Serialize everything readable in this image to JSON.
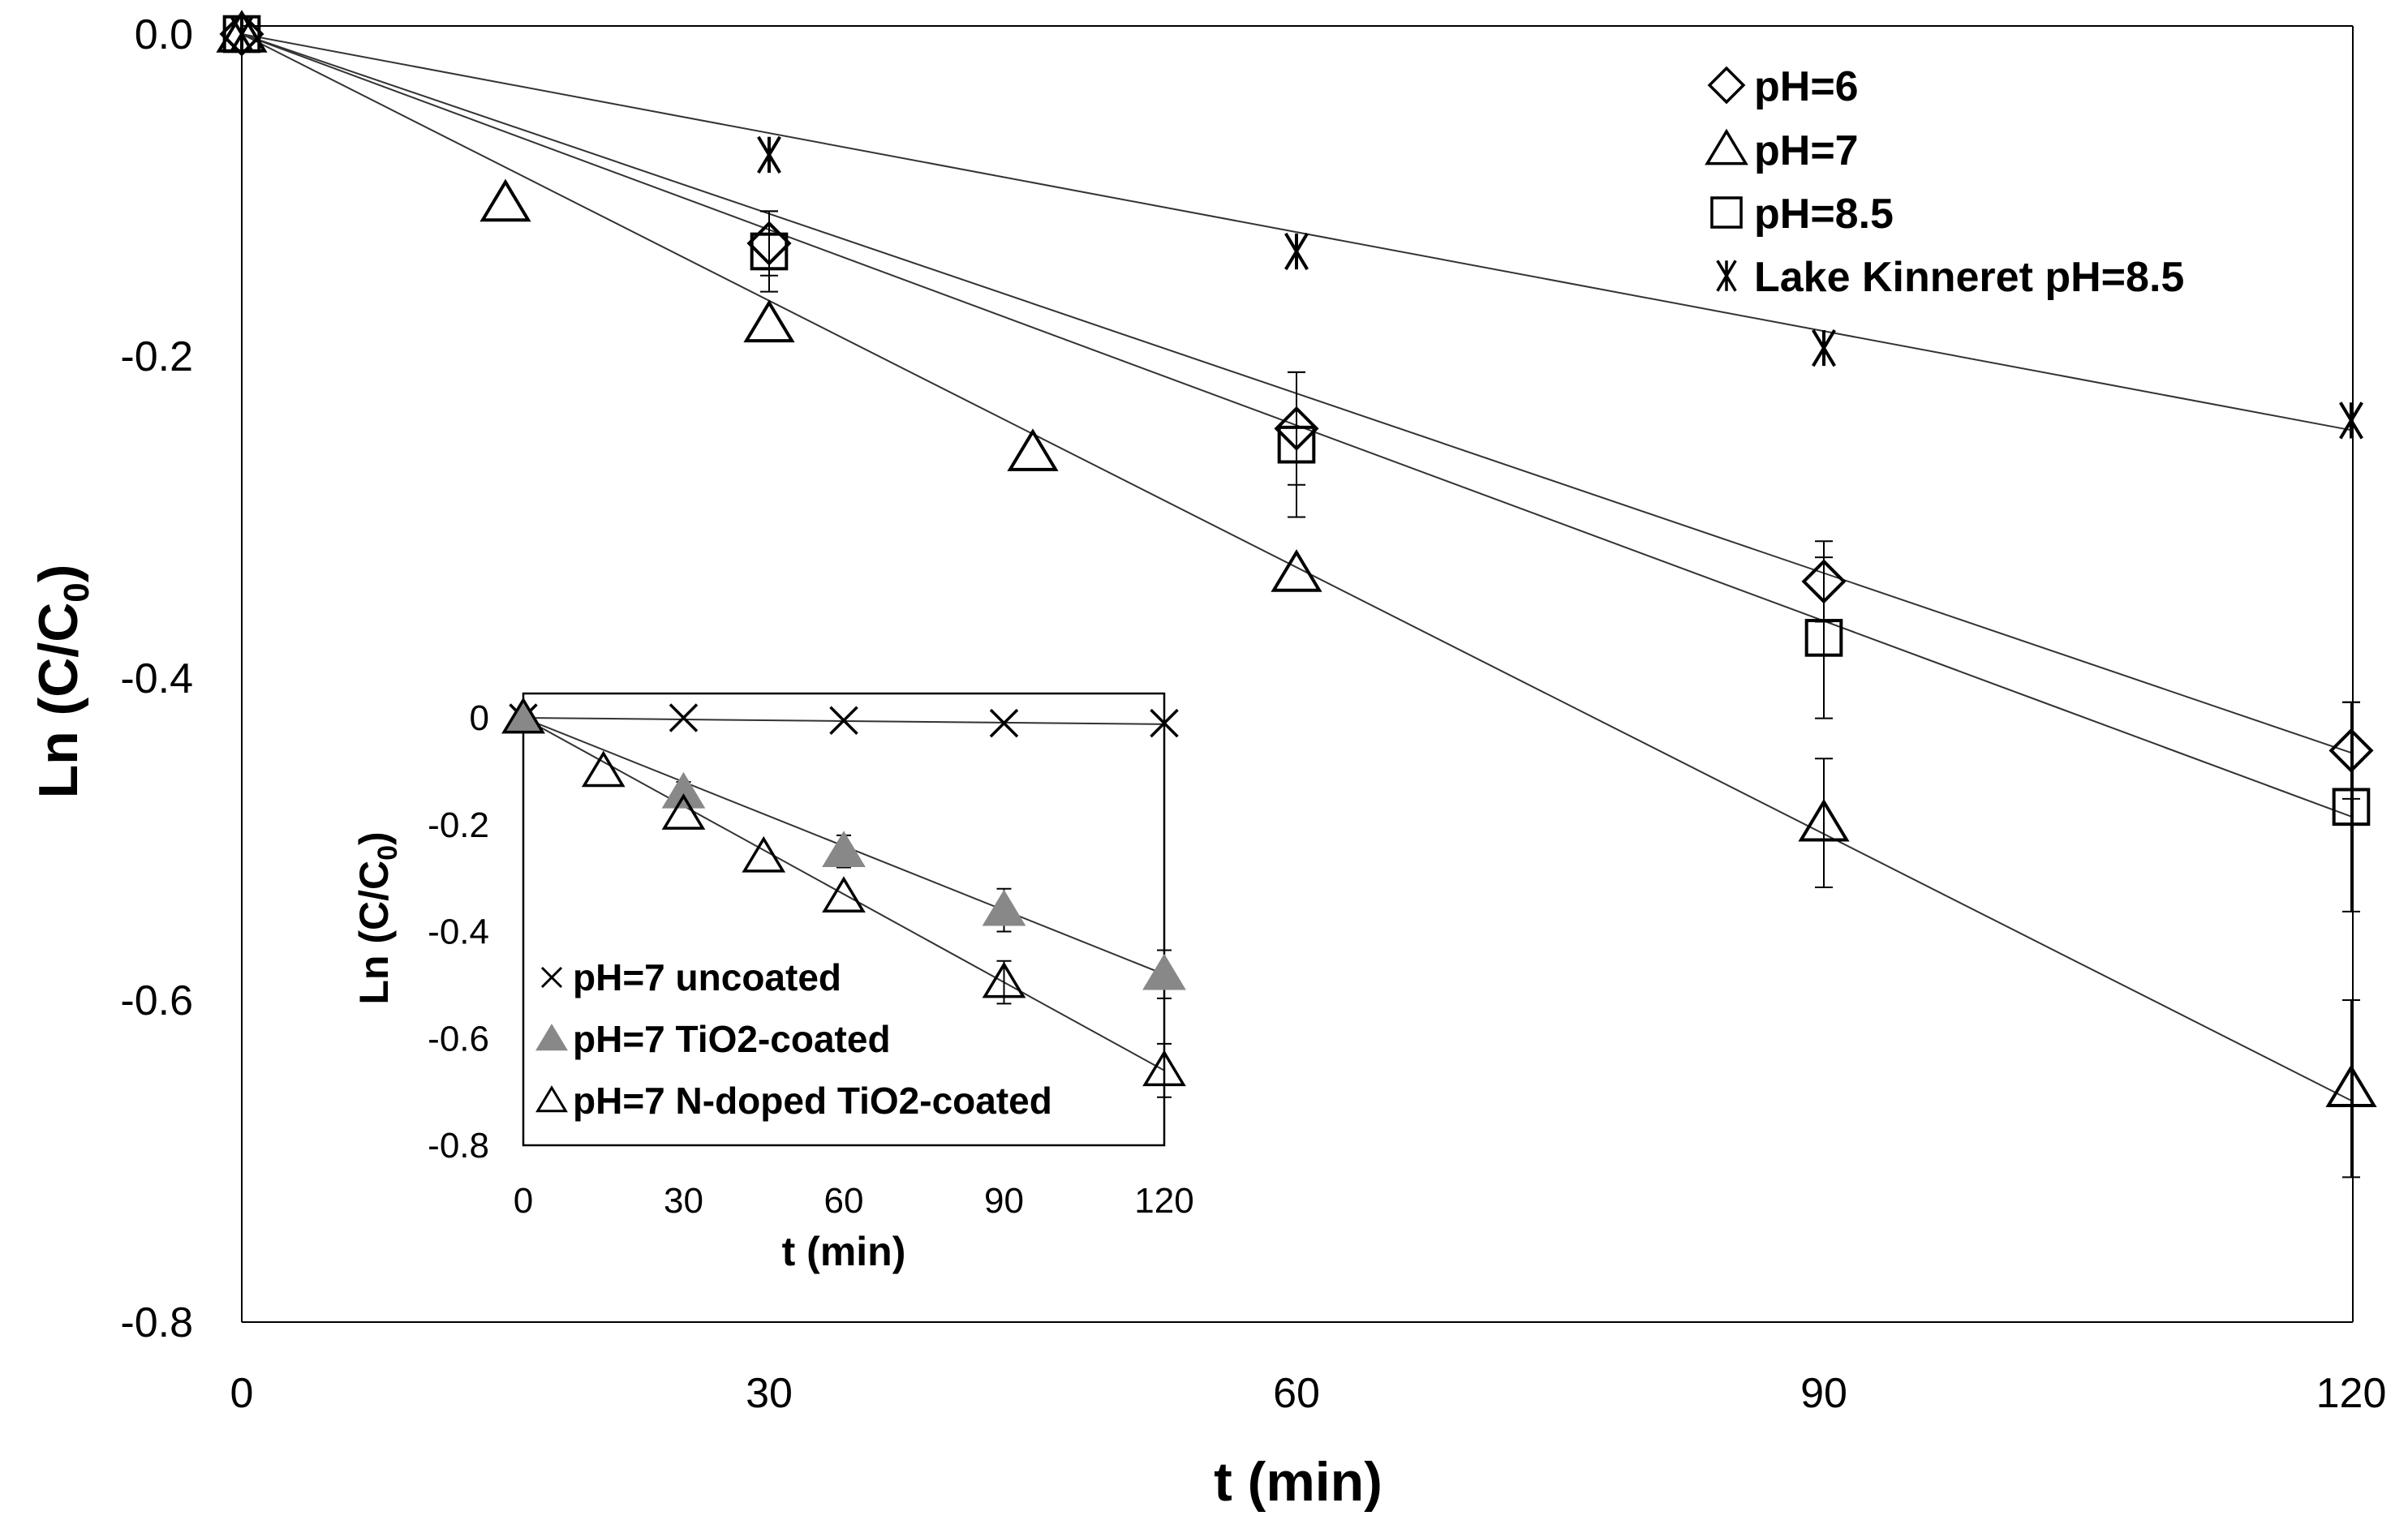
{
  "chart_data": [
    {
      "id": "main",
      "type": "scatter",
      "xlabel": "t (min)",
      "ylabel": "Ln (C/C",
      "ylabel_sub": "0",
      "ylabel_close": ")",
      "xlim": [
        0,
        120
      ],
      "ylim": [
        -0.8,
        0.0
      ],
      "xticks": [
        0,
        30,
        60,
        90,
        120
      ],
      "xtick_labels": [
        "0",
        "30",
        "60",
        "90",
        "120"
      ],
      "yticks": [
        0.0,
        -0.2,
        -0.4,
        -0.6,
        -0.8
      ],
      "ytick_labels": [
        "0.0",
        "-0.2",
        "-0.4",
        "-0.6",
        "-0.8"
      ],
      "grid": false,
      "legend_position": "top-right",
      "series": [
        {
          "name": "pH=6",
          "marker": "diamond",
          "x": [
            0,
            30,
            60,
            90,
            120
          ],
          "y": [
            0,
            -0.13,
            -0.245,
            -0.34,
            -0.445
          ],
          "err": [
            0,
            0.02,
            0.035,
            0.025,
            0.03
          ],
          "fit_slope": -0.00372
        },
        {
          "name": "pH=7",
          "marker": "triangle",
          "x": [
            0,
            15,
            30,
            45,
            60,
            90,
            120
          ],
          "y": [
            0,
            -0.105,
            -0.18,
            -0.26,
            -0.335,
            -0.49,
            -0.655
          ],
          "err": [
            0,
            0,
            0,
            0,
            0,
            0.04,
            0.055
          ],
          "fit_slope": -0.00552
        },
        {
          "name": "pH=8.5",
          "marker": "square",
          "x": [
            0,
            30,
            60,
            90,
            120
          ],
          "y": [
            0,
            -0.135,
            -0.255,
            -0.375,
            -0.48
          ],
          "err": [
            0,
            0.025,
            0.045,
            0.05,
            0.065
          ],
          "fit_slope": -0.00405
        },
        {
          "name": "Lake Kinneret pH=8.5",
          "marker": "asterisk",
          "x": [
            0,
            30,
            60,
            90,
            120
          ],
          "y": [
            0,
            -0.075,
            -0.135,
            -0.195,
            -0.24
          ],
          "err": [
            0,
            0,
            0,
            0,
            0
          ],
          "fit_slope": -0.00205
        }
      ]
    },
    {
      "id": "inset",
      "type": "scatter",
      "xlabel": "t (min)",
      "ylabel": "Ln (C/C",
      "ylabel_sub": "0",
      "ylabel_close": ")",
      "xlim": [
        0,
        120
      ],
      "ylim": [
        -0.8,
        0.0
      ],
      "xticks": [
        0,
        30,
        60,
        90,
        120
      ],
      "xtick_labels": [
        "0",
        "30",
        "60",
        "90",
        "120"
      ],
      "yticks": [
        0.0,
        -0.2,
        -0.4,
        -0.6,
        -0.8
      ],
      "ytick_labels": [
        "0",
        "-0.2",
        "-0.4",
        "-0.6",
        "-0.8"
      ],
      "grid": false,
      "legend_position": "bottom-left",
      "series": [
        {
          "name": "pH=7 uncoated",
          "marker": "x",
          "x": [
            0,
            30,
            60,
            90,
            120
          ],
          "y": [
            0,
            0,
            -0.005,
            -0.01,
            -0.01
          ],
          "err": [
            0,
            0,
            0,
            0,
            0
          ],
          "fit_slope": -0.0001
        },
        {
          "name": "pH=7 TiO2-coated",
          "marker": "filled-triangle",
          "x": [
            0,
            30,
            60,
            90,
            120
          ],
          "y": [
            0,
            -0.14,
            -0.25,
            -0.36,
            -0.48
          ],
          "err": [
            0,
            0.02,
            0.03,
            0.04,
            0.045
          ],
          "fit_slope": -0.004
        },
        {
          "name": "pH=7 N-doped TiO2-coated",
          "marker": "triangle",
          "x": [
            0,
            15,
            30,
            45,
            60,
            90,
            120
          ],
          "y": [
            0,
            -0.1,
            -0.18,
            -0.26,
            -0.335,
            -0.495,
            -0.66
          ],
          "err": [
            0,
            0,
            0,
            0,
            0,
            0.04,
            0.05
          ],
          "fit_slope": -0.0055
        }
      ]
    }
  ],
  "colors": {
    "axis": "#000000",
    "fit_line": "#333333",
    "filled_marker": "#888888",
    "background": "#ffffff"
  }
}
